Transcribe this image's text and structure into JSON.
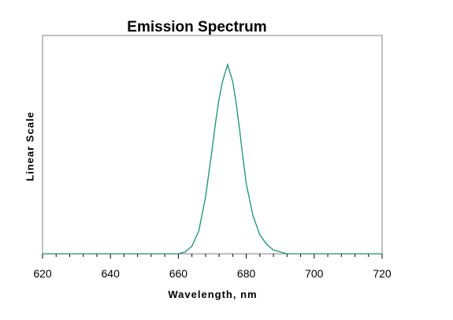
{
  "chart_data": {
    "type": "line",
    "title": "Emission Spectrum",
    "xlabel": "Wavelength, nm",
    "ylabel": "Linear Scale",
    "xlim": [
      620,
      720
    ],
    "ylim": [
      0,
      1.0
    ],
    "x_ticks": [
      620,
      640,
      660,
      680,
      700,
      720
    ],
    "grid": false,
    "line_color": "#1a9070",
    "series": [
      {
        "x": [
          620,
          637,
          660,
          662,
          664,
          666,
          668,
          670,
          671,
          672,
          673,
          674,
          674.5,
          675,
          676,
          677,
          678,
          679,
          680,
          682,
          684,
          686,
          688,
          690,
          692,
          696,
          720
        ],
        "y": [
          0,
          0,
          0,
          0.01,
          0.04,
          0.12,
          0.3,
          0.56,
          0.7,
          0.82,
          0.91,
          0.97,
          1.0,
          0.97,
          0.91,
          0.8,
          0.66,
          0.51,
          0.37,
          0.2,
          0.1,
          0.05,
          0.02,
          0.01,
          0,
          0,
          0
        ]
      }
    ]
  }
}
